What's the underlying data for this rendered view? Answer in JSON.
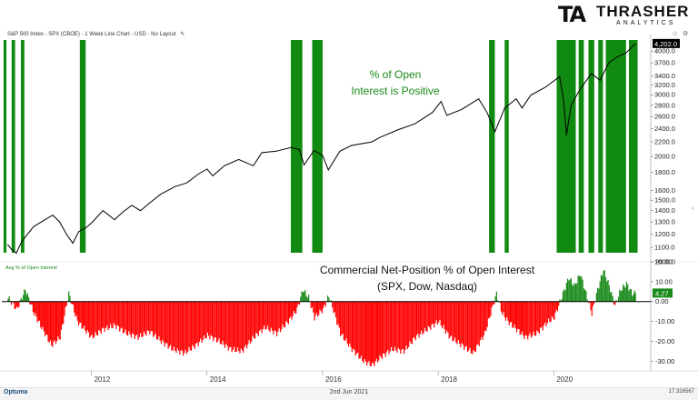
{
  "header": {
    "title": "S&P 500 Index - SPX (CBOE) - 1 Week Line Chart - USD - No Layout",
    "edit_icon": "pencil-icon"
  },
  "logo": {
    "mark": "TA",
    "name": "THRASHER",
    "sub": "ANALYTICS"
  },
  "footer": {
    "brand": "Optuma",
    "date": "2nd Jun 2021",
    "right_value": "17.326567"
  },
  "annotations": {
    "top_line1": "% of Open",
    "top_line2": "Interest is Positive",
    "bottom_line1": "Commercial Net-Position % of Open Interest",
    "bottom_line2": "(SPX, Dow, Nasdaq)"
  },
  "indicator_label": "Avg % of Open Interest",
  "colors": {
    "price": "#000000",
    "positive": "#1a8a1a",
    "negative": "#ff0000",
    "band": "#108a10",
    "last_price_bg": "#000000",
    "last_ind_bg": "#1a8a1a"
  },
  "chart_data": [
    {
      "type": "line",
      "name": "S&P 500 Index",
      "scale": "log",
      "ylim": [
        1000,
        4300
      ],
      "y_ticks": [
        1000,
        1100,
        1200,
        1300,
        1400,
        1500,
        1600,
        1800,
        2000,
        2200,
        2400,
        2600,
        2800,
        3000,
        3200,
        3400,
        3700,
        4000
      ],
      "y_tick_labels": [
        "1000.0",
        "1100.0",
        "1200.0",
        "1300.0",
        "1400.0",
        "1500.0",
        "1600.0",
        "1800.0",
        "2000.0",
        "2200.0",
        "2400.0",
        "2600.0",
        "2800.0",
        "3000.0",
        "3200.0",
        "3400.0",
        "3700.0",
        "4000.0"
      ],
      "last_value_label": "4,202.0",
      "x_ticks": [
        "2012",
        "2014",
        "2016",
        "2018",
        "2020"
      ],
      "points": [
        [
          2010.55,
          1120
        ],
        [
          2010.62,
          1085
        ],
        [
          2010.7,
          1060
        ],
        [
          2010.78,
          1130
        ],
        [
          2010.86,
          1180
        ],
        [
          2011.0,
          1260
        ],
        [
          2011.2,
          1320
        ],
        [
          2011.33,
          1360
        ],
        [
          2011.45,
          1300
        ],
        [
          2011.58,
          1190
        ],
        [
          2011.68,
          1130
        ],
        [
          2011.78,
          1220
        ],
        [
          2011.9,
          1250
        ],
        [
          2012.0,
          1290
        ],
        [
          2012.2,
          1400
        ],
        [
          2012.4,
          1320
        ],
        [
          2012.55,
          1390
        ],
        [
          2012.7,
          1450
        ],
        [
          2012.85,
          1400
        ],
        [
          2013.0,
          1470
        ],
        [
          2013.2,
          1560
        ],
        [
          2013.45,
          1640
        ],
        [
          2013.65,
          1680
        ],
        [
          2013.85,
          1780
        ],
        [
          2014.0,
          1840
        ],
        [
          2014.1,
          1760
        ],
        [
          2014.3,
          1880
        ],
        [
          2014.55,
          1960
        ],
        [
          2014.8,
          1880
        ],
        [
          2014.95,
          2050
        ],
        [
          2015.2,
          2070
        ],
        [
          2015.45,
          2120
        ],
        [
          2015.6,
          2090
        ],
        [
          2015.68,
          1890
        ],
        [
          2015.85,
          2080
        ],
        [
          2016.0,
          2010
        ],
        [
          2016.1,
          1830
        ],
        [
          2016.3,
          2070
        ],
        [
          2016.5,
          2150
        ],
        [
          2016.85,
          2200
        ],
        [
          2017.0,
          2270
        ],
        [
          2017.3,
          2380
        ],
        [
          2017.6,
          2480
        ],
        [
          2017.9,
          2670
        ],
        [
          2018.05,
          2870
        ],
        [
          2018.15,
          2620
        ],
        [
          2018.4,
          2720
        ],
        [
          2018.7,
          2920
        ],
        [
          2018.85,
          2660
        ],
        [
          2018.98,
          2350
        ],
        [
          2019.15,
          2750
        ],
        [
          2019.35,
          2920
        ],
        [
          2019.45,
          2750
        ],
        [
          2019.6,
          2990
        ],
        [
          2019.85,
          3150
        ],
        [
          2020.1,
          3380
        ],
        [
          2020.17,
          2900
        ],
        [
          2020.22,
          2300
        ],
        [
          2020.3,
          2800
        ],
        [
          2020.45,
          3100
        ],
        [
          2020.65,
          3450
        ],
        [
          2020.8,
          3300
        ],
        [
          2020.95,
          3700
        ],
        [
          2021.1,
          3850
        ],
        [
          2021.25,
          3950
        ],
        [
          2021.38,
          4150
        ],
        [
          2021.42,
          4202
        ]
      ]
    },
    {
      "type": "bar",
      "name": "Avg % of Open Interest",
      "ylim": [
        -34,
        20
      ],
      "y_ticks": [
        -30,
        -20,
        -10,
        0,
        10,
        20
      ],
      "y_tick_labels": [
        "-30.00",
        "-20.00",
        "-10.00",
        "0.00",
        "10.00",
        "20.00"
      ],
      "last_value_label": "4.27",
      "points": [
        [
          2010.55,
          2
        ],
        [
          2010.7,
          -4
        ],
        [
          2010.85,
          6
        ],
        [
          2011.0,
          -6
        ],
        [
          2011.15,
          -14
        ],
        [
          2011.3,
          -22
        ],
        [
          2011.45,
          -18
        ],
        [
          2011.6,
          4
        ],
        [
          2011.75,
          -10
        ],
        [
          2012.0,
          -18
        ],
        [
          2012.2,
          -14
        ],
        [
          2012.4,
          -12
        ],
        [
          2012.6,
          -16
        ],
        [
          2012.8,
          -18
        ],
        [
          2013.0,
          -15
        ],
        [
          2013.2,
          -20
        ],
        [
          2013.4,
          -24
        ],
        [
          2013.6,
          -26
        ],
        [
          2013.8,
          -22
        ],
        [
          2014.0,
          -17
        ],
        [
          2014.2,
          -20
        ],
        [
          2014.4,
          -24
        ],
        [
          2014.6,
          -25
        ],
        [
          2014.8,
          -18
        ],
        [
          2015.0,
          -13
        ],
        [
          2015.2,
          -16
        ],
        [
          2015.4,
          -10
        ],
        [
          2015.55,
          -4
        ],
        [
          2015.65,
          6
        ],
        [
          2015.75,
          2
        ],
        [
          2015.85,
          -8
        ],
        [
          2016.0,
          -4
        ],
        [
          2016.1,
          3
        ],
        [
          2016.3,
          -16
        ],
        [
          2016.5,
          -24
        ],
        [
          2016.7,
          -30
        ],
        [
          2016.85,
          -32
        ],
        [
          2017.0,
          -28
        ],
        [
          2017.2,
          -24
        ],
        [
          2017.4,
          -25
        ],
        [
          2017.6,
          -18
        ],
        [
          2017.8,
          -14
        ],
        [
          2018.0,
          -10
        ],
        [
          2018.2,
          -18
        ],
        [
          2018.4,
          -22
        ],
        [
          2018.6,
          -26
        ],
        [
          2018.8,
          -16
        ],
        [
          2019.0,
          4
        ],
        [
          2019.1,
          -6
        ],
        [
          2019.2,
          -10
        ],
        [
          2019.35,
          -14
        ],
        [
          2019.5,
          -18
        ],
        [
          2019.7,
          -16
        ],
        [
          2019.9,
          -10
        ],
        [
          2020.0,
          -8
        ],
        [
          2020.15,
          4
        ],
        [
          2020.25,
          12
        ],
        [
          2020.35,
          8
        ],
        [
          2020.45,
          14
        ],
        [
          2020.55,
          4
        ],
        [
          2020.65,
          -6
        ],
        [
          2020.75,
          6
        ],
        [
          2020.85,
          16
        ],
        [
          2020.95,
          8
        ],
        [
          2021.05,
          -2
        ],
        [
          2021.15,
          6
        ],
        [
          2021.25,
          9
        ],
        [
          2021.35,
          4
        ],
        [
          2021.42,
          4.27
        ]
      ]
    }
  ],
  "bands": [
    [
      2010.48,
      2010.53
    ],
    [
      2010.62,
      2010.68
    ],
    [
      2010.78,
      2010.84
    ],
    [
      2011.8,
      2011.9
    ],
    [
      2015.45,
      2015.65
    ],
    [
      2015.82,
      2016.0
    ],
    [
      2018.88,
      2018.98
    ],
    [
      2019.15,
      2019.22
    ],
    [
      2020.05,
      2020.38
    ],
    [
      2020.43,
      2020.52
    ],
    [
      2020.6,
      2020.7
    ],
    [
      2020.77,
      2020.85
    ],
    [
      2020.9,
      2021.25
    ],
    [
      2021.3,
      2021.45
    ]
  ]
}
